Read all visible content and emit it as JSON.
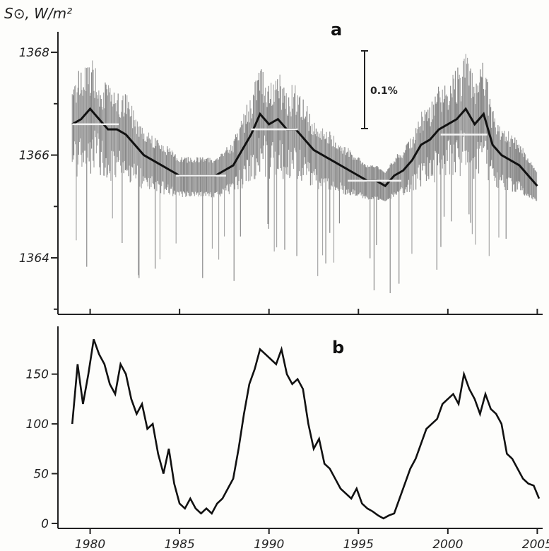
{
  "chart_data": [
    {
      "panel": "a",
      "type": "line",
      "ylabel": "S⊙, W/m²",
      "xlim": [
        1978.2,
        2005.3
      ],
      "ylim": [
        1362.9,
        1368.4
      ],
      "yticks": [
        1364,
        1366,
        1368
      ],
      "xticks": [
        1980,
        1985,
        1990,
        1995,
        2000,
        2005
      ],
      "scale_bar_label": "0.1%",
      "series": [
        {
          "values_kind": "smoothed_mean",
          "x": [
            1979.0,
            1979.5,
            1980.0,
            1980.5,
            1981.0,
            1981.5,
            1982.0,
            1982.5,
            1983.0,
            1983.5,
            1984.0,
            1984.5,
            1985.0,
            1985.5,
            1986.0,
            1986.5,
            1987.0,
            1987.5,
            1988.0,
            1988.5,
            1989.0,
            1989.5,
            1990.0,
            1990.5,
            1991.0,
            1991.5,
            1992.0,
            1992.5,
            1993.0,
            1993.5,
            1994.0,
            1994.5,
            1995.0,
            1995.5,
            1996.0,
            1996.5,
            1997.0,
            1997.5,
            1998.0,
            1998.5,
            1999.0,
            1999.5,
            2000.0,
            2000.5,
            2001.0,
            2001.5,
            2002.0,
            2002.5,
            2003.0,
            2003.5,
            2004.0,
            2004.5,
            2005.0
          ],
          "y": [
            1366.6,
            1366.7,
            1366.9,
            1366.7,
            1366.5,
            1366.5,
            1366.4,
            1366.2,
            1366.0,
            1365.9,
            1365.8,
            1365.7,
            1365.6,
            1365.6,
            1365.6,
            1365.6,
            1365.6,
            1365.7,
            1365.8,
            1366.1,
            1366.4,
            1366.8,
            1366.6,
            1366.7,
            1366.5,
            1366.5,
            1366.3,
            1366.1,
            1366.0,
            1365.9,
            1365.8,
            1365.7,
            1365.6,
            1365.5,
            1365.5,
            1365.4,
            1365.6,
            1365.7,
            1365.9,
            1366.2,
            1366.3,
            1366.5,
            1366.6,
            1366.7,
            1366.9,
            1366.6,
            1366.8,
            1366.2,
            1366.0,
            1365.9,
            1365.8,
            1365.6,
            1365.4
          ]
        }
      ],
      "cycle_means": [
        {
          "x": [
            1979.0,
            1981.6
          ],
          "y": 1366.6
        },
        {
          "x": [
            1984.8,
            1987.6
          ],
          "y": 1365.6
        },
        {
          "x": [
            1989.0,
            1991.6
          ],
          "y": 1366.5
        },
        {
          "x": [
            1994.4,
            1997.4
          ],
          "y": 1365.5
        },
        {
          "x": [
            1999.6,
            2002.2
          ],
          "y": 1366.4
        }
      ]
    },
    {
      "panel": "b",
      "type": "line",
      "xlim": [
        1978.2,
        2005.3
      ],
      "ylim": [
        -5,
        198
      ],
      "yticks": [
        0,
        50,
        100,
        150
      ],
      "xticks": [
        1980,
        1985,
        1990,
        1995,
        2000,
        2005
      ],
      "xtick_labels": [
        "1980",
        "1985",
        "1990",
        "1995",
        "2000",
        "2005"
      ],
      "series": [
        {
          "x": [
            1979.0,
            1979.3,
            1979.6,
            1979.9,
            1980.2,
            1980.5,
            1980.8,
            1981.1,
            1981.4,
            1981.7,
            1982.0,
            1982.3,
            1982.6,
            1982.9,
            1983.2,
            1983.5,
            1983.8,
            1984.1,
            1984.4,
            1984.7,
            1985.0,
            1985.3,
            1985.6,
            1985.9,
            1986.2,
            1986.5,
            1986.8,
            1987.1,
            1987.4,
            1987.7,
            1988.0,
            1988.3,
            1988.6,
            1988.9,
            1989.2,
            1989.5,
            1989.8,
            1990.1,
            1990.4,
            1990.7,
            1991.0,
            1991.3,
            1991.6,
            1991.9,
            1992.2,
            1992.5,
            1992.8,
            1993.1,
            1993.4,
            1993.7,
            1994.0,
            1994.3,
            1994.6,
            1994.9,
            1995.2,
            1995.5,
            1995.8,
            1996.1,
            1996.4,
            1996.7,
            1997.0,
            1997.3,
            1997.6,
            1997.9,
            1998.2,
            1998.5,
            1998.8,
            1999.1,
            1999.4,
            1999.7,
            2000.0,
            2000.3,
            2000.6,
            2000.9,
            2001.2,
            2001.5,
            2001.8,
            2002.1,
            2002.4,
            2002.7,
            2003.0,
            2003.3,
            2003.6,
            2003.9,
            2004.2,
            2004.5,
            2004.8,
            2005.1
          ],
          "y": [
            100,
            160,
            120,
            150,
            185,
            170,
            160,
            140,
            130,
            160,
            150,
            125,
            110,
            120,
            95,
            100,
            70,
            50,
            75,
            40,
            20,
            15,
            25,
            15,
            10,
            15,
            10,
            20,
            25,
            35,
            45,
            75,
            110,
            140,
            155,
            175,
            170,
            165,
            160,
            175,
            150,
            140,
            145,
            135,
            100,
            75,
            85,
            60,
            55,
            45,
            35,
            30,
            25,
            35,
            20,
            15,
            12,
            8,
            5,
            8,
            10,
            25,
            40,
            55,
            65,
            80,
            95,
            100,
            105,
            120,
            125,
            130,
            120,
            150,
            135,
            125,
            110,
            130,
            115,
            110,
            100,
            70,
            65,
            55,
            45,
            40,
            38,
            25
          ]
        }
      ]
    }
  ]
}
